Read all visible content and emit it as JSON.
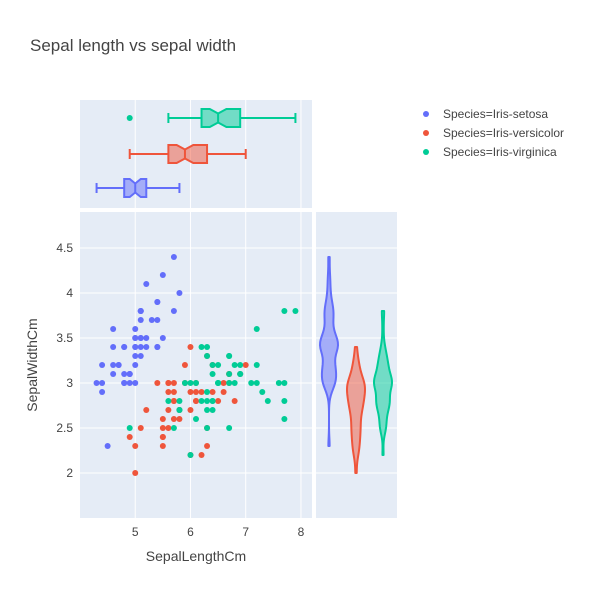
{
  "chart_data": {
    "type": "scatter",
    "title": "Sepal length vs sepal width",
    "xlabel": "SepalLengthCm",
    "ylabel": "SepalWidthCm",
    "xlim": [
      4.0,
      8.2
    ],
    "ylim": [
      1.5,
      4.9
    ],
    "x_ticks": [
      5,
      6,
      7,
      8
    ],
    "y_ticks": [
      2,
      2.5,
      3,
      3.5,
      4,
      4.5
    ],
    "y_tick_labels": [
      "2",
      "2.5",
      "3",
      "3.5",
      "4",
      "4.5"
    ],
    "grid": true,
    "legend_position": "top-right",
    "marginal_x": "box",
    "marginal_y": "violin",
    "series": [
      {
        "name": "Species=Iris-setosa",
        "color": "#636efa",
        "points": [
          [
            5.1,
            3.5
          ],
          [
            4.9,
            3.0
          ],
          [
            4.7,
            3.2
          ],
          [
            4.6,
            3.1
          ],
          [
            5.0,
            3.6
          ],
          [
            5.4,
            3.9
          ],
          [
            4.6,
            3.4
          ],
          [
            5.0,
            3.4
          ],
          [
            4.4,
            2.9
          ],
          [
            4.9,
            3.1
          ],
          [
            5.4,
            3.7
          ],
          [
            4.8,
            3.4
          ],
          [
            4.8,
            3.0
          ],
          [
            4.3,
            3.0
          ],
          [
            5.8,
            4.0
          ],
          [
            5.7,
            4.4
          ],
          [
            5.4,
            3.9
          ],
          [
            5.1,
            3.5
          ],
          [
            5.7,
            3.8
          ],
          [
            5.1,
            3.8
          ],
          [
            5.4,
            3.4
          ],
          [
            5.1,
            3.7
          ],
          [
            4.6,
            3.6
          ],
          [
            5.1,
            3.3
          ],
          [
            4.8,
            3.4
          ],
          [
            5.0,
            3.0
          ],
          [
            5.0,
            3.4
          ],
          [
            5.2,
            3.5
          ],
          [
            5.2,
            3.4
          ],
          [
            4.7,
            3.2
          ],
          [
            4.8,
            3.1
          ],
          [
            5.4,
            3.4
          ],
          [
            5.2,
            4.1
          ],
          [
            5.5,
            4.2
          ],
          [
            4.9,
            3.1
          ],
          [
            5.0,
            3.2
          ],
          [
            5.5,
            3.5
          ],
          [
            4.9,
            3.1
          ],
          [
            4.4,
            3.0
          ],
          [
            5.1,
            3.4
          ],
          [
            5.0,
            3.5
          ],
          [
            4.5,
            2.3
          ],
          [
            4.4,
            3.2
          ],
          [
            5.0,
            3.5
          ],
          [
            5.1,
            3.8
          ],
          [
            4.8,
            3.0
          ],
          [
            5.1,
            3.8
          ],
          [
            4.6,
            3.2
          ],
          [
            5.3,
            3.7
          ],
          [
            5.0,
            3.3
          ]
        ],
        "box": {
          "min": 4.3,
          "q1": 4.8,
          "median": 5.0,
          "q3": 5.2,
          "max": 5.8,
          "notch": [
            4.9,
            5.1
          ],
          "outliers": []
        },
        "violin": {
          "range": [
            2.3,
            4.4
          ],
          "median": 3.4
        }
      },
      {
        "name": "Species=Iris-versicolor",
        "color": "#ef553b",
        "points": [
          [
            7.0,
            3.2
          ],
          [
            6.4,
            3.2
          ],
          [
            6.9,
            3.1
          ],
          [
            5.5,
            2.3
          ],
          [
            6.5,
            2.8
          ],
          [
            5.7,
            2.8
          ],
          [
            6.3,
            3.3
          ],
          [
            4.9,
            2.4
          ],
          [
            6.6,
            2.9
          ],
          [
            5.2,
            2.7
          ],
          [
            5.0,
            2.0
          ],
          [
            5.9,
            3.0
          ],
          [
            6.0,
            2.2
          ],
          [
            6.1,
            2.9
          ],
          [
            5.6,
            2.9
          ],
          [
            6.7,
            3.1
          ],
          [
            5.6,
            3.0
          ],
          [
            5.8,
            2.7
          ],
          [
            6.2,
            2.2
          ],
          [
            5.6,
            2.5
          ],
          [
            5.9,
            3.2
          ],
          [
            6.1,
            2.8
          ],
          [
            6.3,
            2.5
          ],
          [
            6.1,
            2.8
          ],
          [
            6.4,
            2.9
          ],
          [
            6.6,
            3.0
          ],
          [
            6.8,
            2.8
          ],
          [
            6.7,
            3.0
          ],
          [
            6.0,
            2.9
          ],
          [
            5.7,
            2.6
          ],
          [
            5.5,
            2.4
          ],
          [
            5.5,
            2.4
          ],
          [
            5.8,
            2.7
          ],
          [
            6.0,
            2.7
          ],
          [
            5.4,
            3.0
          ],
          [
            6.0,
            3.4
          ],
          [
            6.7,
            3.1
          ],
          [
            6.3,
            2.3
          ],
          [
            5.6,
            3.0
          ],
          [
            5.5,
            2.5
          ],
          [
            5.5,
            2.6
          ],
          [
            6.1,
            3.0
          ],
          [
            5.8,
            2.6
          ],
          [
            5.0,
            2.3
          ],
          [
            5.6,
            2.7
          ],
          [
            5.7,
            3.0
          ],
          [
            5.7,
            2.9
          ],
          [
            6.2,
            2.9
          ],
          [
            5.1,
            2.5
          ],
          [
            5.7,
            2.8
          ]
        ],
        "box": {
          "min": 4.9,
          "q1": 5.6,
          "median": 5.9,
          "q3": 6.3,
          "max": 7.0,
          "notch": [
            5.75,
            6.05
          ],
          "outliers": []
        },
        "violin": {
          "range": [
            2.0,
            3.4
          ],
          "median": 2.8
        }
      },
      {
        "name": "Species=Iris-virginica",
        "color": "#00cc96",
        "points": [
          [
            6.3,
            3.3
          ],
          [
            5.8,
            2.7
          ],
          [
            7.1,
            3.0
          ],
          [
            6.3,
            2.9
          ],
          [
            6.5,
            3.0
          ],
          [
            7.6,
            3.0
          ],
          [
            4.9,
            2.5
          ],
          [
            7.3,
            2.9
          ],
          [
            6.7,
            2.5
          ],
          [
            7.2,
            3.6
          ],
          [
            6.5,
            3.2
          ],
          [
            6.4,
            2.7
          ],
          [
            6.8,
            3.0
          ],
          [
            5.7,
            2.5
          ],
          [
            5.8,
            2.8
          ],
          [
            6.4,
            3.2
          ],
          [
            6.5,
            3.0
          ],
          [
            7.7,
            3.8
          ],
          [
            7.7,
            2.6
          ],
          [
            6.0,
            2.2
          ],
          [
            6.9,
            3.2
          ],
          [
            5.6,
            2.8
          ],
          [
            7.7,
            2.8
          ],
          [
            6.3,
            2.7
          ],
          [
            6.7,
            3.3
          ],
          [
            7.2,
            3.2
          ],
          [
            6.2,
            2.8
          ],
          [
            6.1,
            3.0
          ],
          [
            6.4,
            2.8
          ],
          [
            7.2,
            3.0
          ],
          [
            7.4,
            2.8
          ],
          [
            7.9,
            3.8
          ],
          [
            6.4,
            2.8
          ],
          [
            6.3,
            2.8
          ],
          [
            6.1,
            2.6
          ],
          [
            7.7,
            3.0
          ],
          [
            6.3,
            3.4
          ],
          [
            6.4,
            3.1
          ],
          [
            6.0,
            3.0
          ],
          [
            6.9,
            3.1
          ],
          [
            6.7,
            3.1
          ],
          [
            6.9,
            3.1
          ],
          [
            5.8,
            2.7
          ],
          [
            6.8,
            3.2
          ],
          [
            6.7,
            3.3
          ],
          [
            6.7,
            3.0
          ],
          [
            6.3,
            2.5
          ],
          [
            6.5,
            3.0
          ],
          [
            6.2,
            3.4
          ],
          [
            5.9,
            3.0
          ]
        ],
        "box": {
          "min": 5.6,
          "q1": 6.2,
          "median": 6.5,
          "q3": 6.9,
          "max": 7.9,
          "notch": [
            6.35,
            6.65
          ],
          "outliers": [
            4.9
          ]
        },
        "violin": {
          "range": [
            2.2,
            3.8
          ],
          "median": 3.0
        }
      }
    ]
  }
}
